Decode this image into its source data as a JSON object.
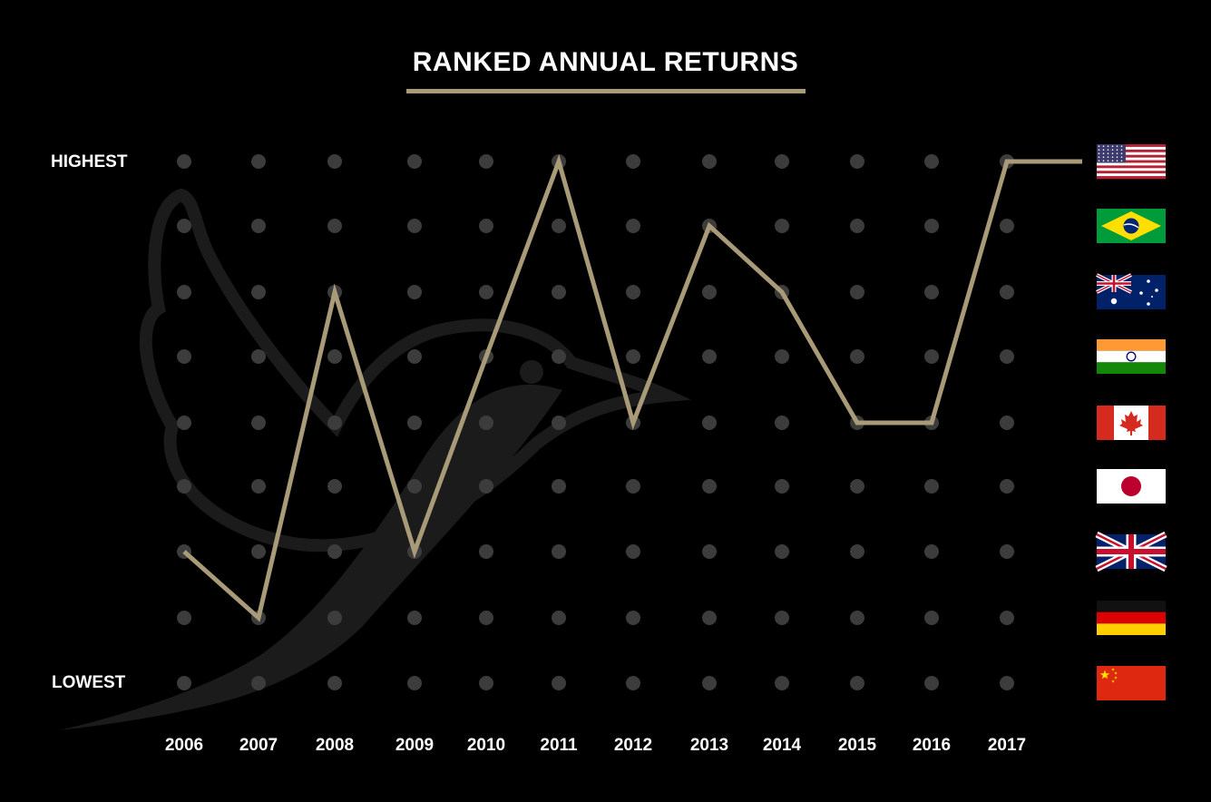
{
  "colors": {
    "background": "#000000",
    "accent": "#a99a78",
    "dot": "#3c3c3c",
    "watermark": "#1b1b1b",
    "text": "#ffffff"
  },
  "watermark": "dove-silhouette",
  "chart_data": {
    "type": "line",
    "title": "RANKED ANNUAL RETURNS",
    "ylabel_top": "HIGHEST",
    "ylabel_bottom": "LOWEST",
    "categories": [
      "2006",
      "2007",
      "2008",
      "2009",
      "2010",
      "2011",
      "2012",
      "2013",
      "2014",
      "2015",
      "2016",
      "2017"
    ],
    "rows": [
      "United States",
      "Brazil",
      "Australia",
      "India",
      "Canada",
      "Japan",
      "United Kingdom",
      "Germany",
      "China"
    ],
    "row_flag_icons": [
      "us-flag-icon",
      "brazil-flag-icon",
      "australia-flag-icon",
      "india-flag-icon",
      "canada-flag-icon",
      "japan-flag-icon",
      "uk-flag-icon",
      "germany-flag-icon",
      "china-flag-icon"
    ],
    "series": [
      {
        "rank": [
          7,
          8,
          3,
          7,
          4,
          1,
          5,
          2,
          3,
          5,
          5,
          1
        ]
      }
    ],
    "line_extends_to_flag": true,
    "grid": "dots"
  }
}
